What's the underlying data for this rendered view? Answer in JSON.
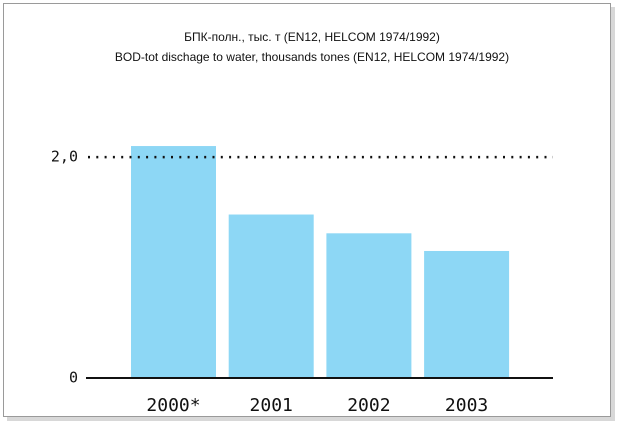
{
  "chart_data": {
    "type": "bar",
    "title": "БПК-полн., тыс. т (EN12, HELCOM 1974/1992)",
    "subtitle": "BOD-tot dischage to water, thousands tones (EN12, HELCOM 1974/1992)",
    "categories": [
      "2000*",
      "2001",
      "2002",
      "2003"
    ],
    "values": [
      2.1,
      1.48,
      1.31,
      1.15
    ],
    "color": "#8dd7f5",
    "ylim": [
      0,
      2.2
    ],
    "yticks": [
      0,
      {
        "value": 2,
        "label": "2,0"
      }
    ],
    "grid": true
  }
}
